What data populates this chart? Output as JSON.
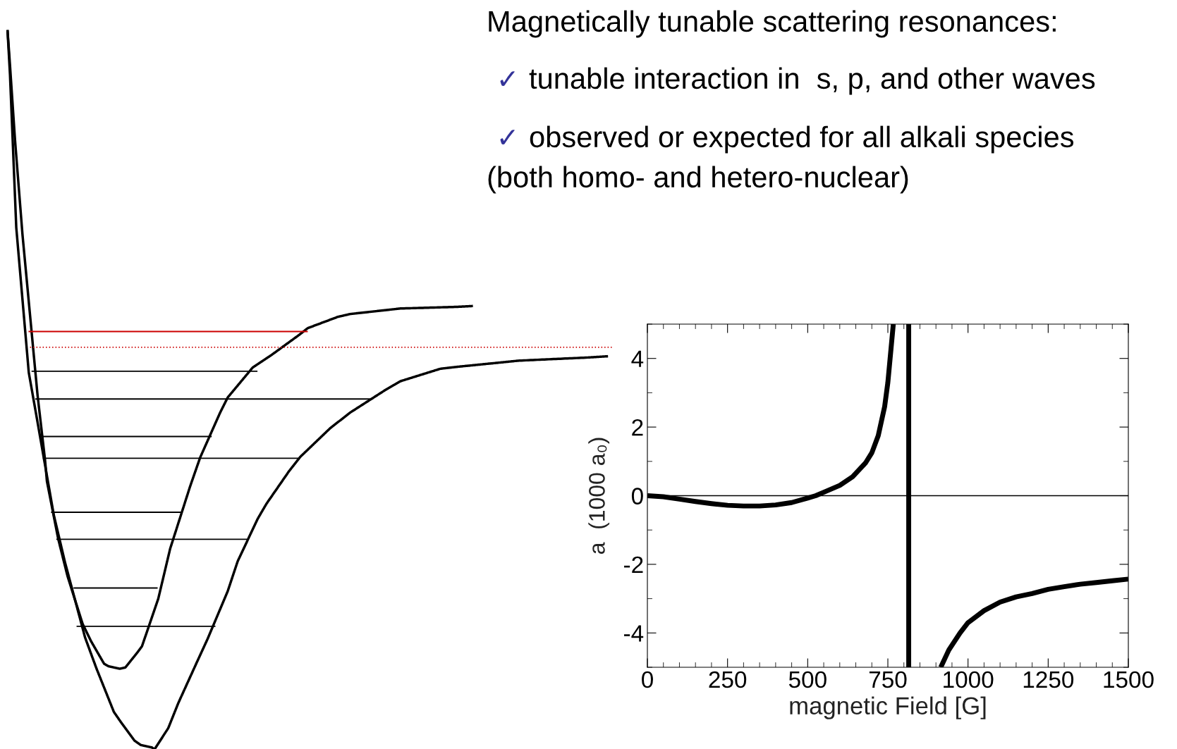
{
  "chart_data": {
    "type": "line",
    "title": "Magnetically tunable scattering resonances:",
    "annotations": [
      "✓",
      "tunable interaction in  s, p, and other waves",
      "✓",
      "observed or expected for all alkali species",
      "(both homo- and hetero-nuclear)"
    ],
    "xlabel": "magnetic Field [G]",
    "ylabel": "a  (1000 a₀)",
    "series": [
      {
        "color": "#000000",
        "x": [
          0,
          50,
          100,
          150,
          200,
          250,
          300,
          350,
          400,
          450,
          500,
          525,
          550,
          600,
          640,
          680,
          700,
          720,
          740,
          750,
          760,
          767
        ],
        "values": [
          0,
          -0.03,
          -0.1,
          -0.17,
          -0.23,
          -0.28,
          -0.3,
          -0.3,
          -0.27,
          -0.2,
          -0.07,
          0,
          0.1,
          0.3,
          0.55,
          0.95,
          1.25,
          1.75,
          2.6,
          3.3,
          4.3,
          5.0
        ]
      },
      {
        "color": "#000000",
        "x": [
          915,
          940,
          975,
          1000,
          1050,
          1100,
          1150,
          1200,
          1250,
          1300,
          1350,
          1400,
          1450,
          1500
        ],
        "values": [
          -5,
          -4.5,
          -4.0,
          -3.7,
          -3.35,
          -3.1,
          -2.95,
          -2.85,
          -2.73,
          -2.65,
          -2.58,
          -2.53,
          -2.48,
          -2.43
        ]
      }
    ],
    "ref_lines": [
      {
        "axis": "x",
        "value": 815,
        "color": "#000000"
      },
      {
        "axis": "y",
        "value": 0,
        "color": "#000000"
      }
    ],
    "xlim": [
      0,
      1500
    ],
    "xticks": [
      0,
      250,
      500,
      750,
      1000,
      1250,
      1500
    ],
    "ylim": [
      -5,
      5
    ],
    "yticks": [
      -4,
      -2,
      0,
      2,
      4
    ],
    "grid": false,
    "legend": false,
    "marker": "none",
    "line_style": "solid"
  }
}
